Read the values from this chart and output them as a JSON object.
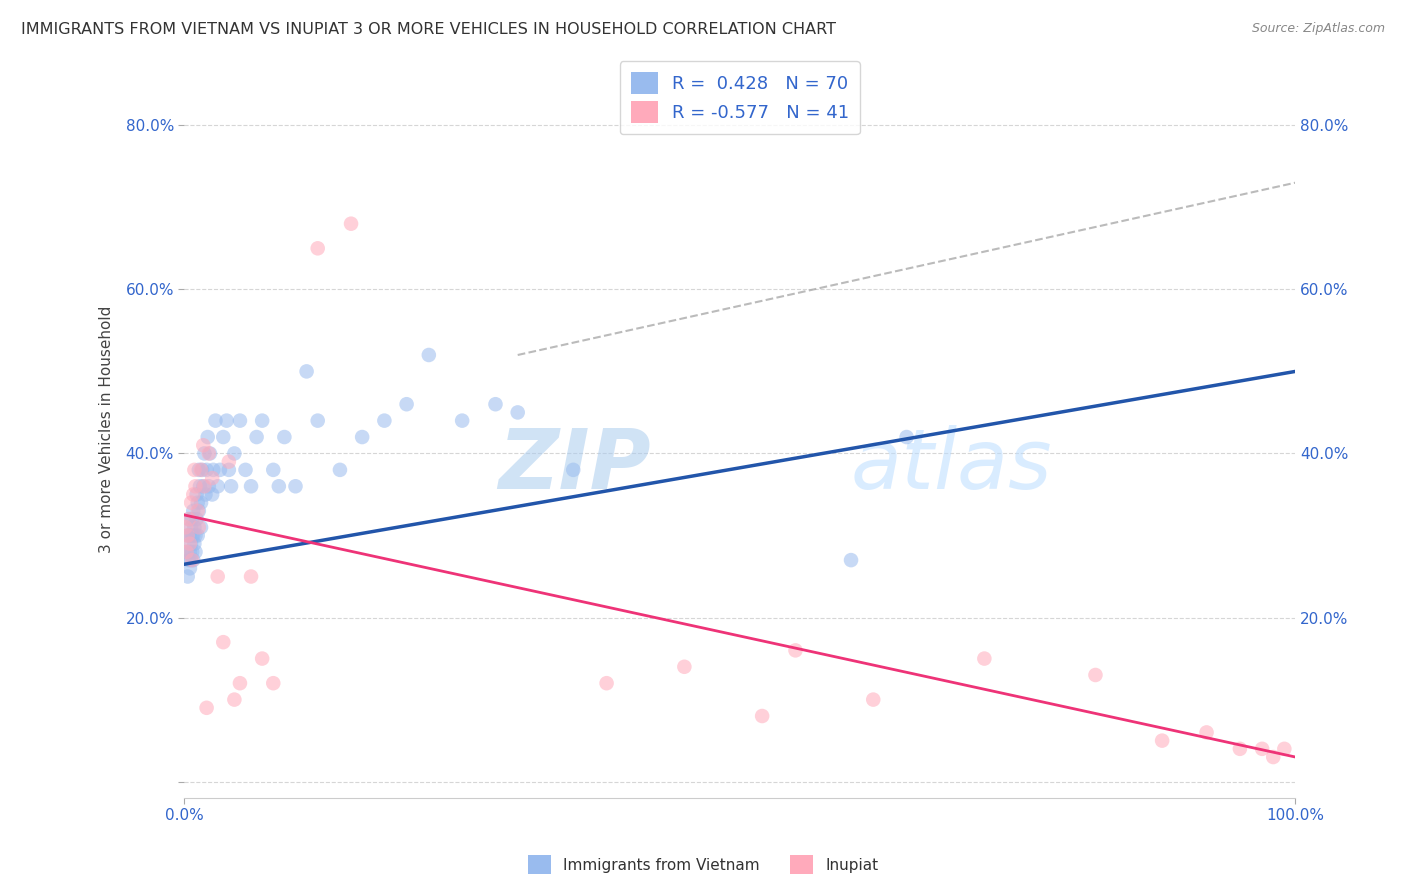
{
  "title": "IMMIGRANTS FROM VIETNAM VS INUPIAT 3 OR MORE VEHICLES IN HOUSEHOLD CORRELATION CHART",
  "source": "Source: ZipAtlas.com",
  "ylabel": "3 or more Vehicles in Household",
  "xlim": [
    0.0,
    1.0
  ],
  "ylim": [
    -0.02,
    0.88
  ],
  "x_ticks": [
    0.0,
    1.0
  ],
  "x_tick_labels": [
    "0.0%",
    "100.0%"
  ],
  "y_ticks": [
    0.0,
    0.2,
    0.4,
    0.6,
    0.8
  ],
  "y_tick_labels": [
    "",
    "20.0%",
    "40.0%",
    "60.0%",
    "80.0%"
  ],
  "right_y_ticks": [
    0.2,
    0.4,
    0.6,
    0.8
  ],
  "right_y_tick_labels": [
    "20.0%",
    "40.0%",
    "60.0%",
    "80.0%"
  ],
  "color_blue": "#99BBEE",
  "color_pink": "#FFAABB",
  "color_blue_line": "#2255AA",
  "color_pink_line": "#EE3377",
  "background_color": "#FFFFFF",
  "grid_color": "#CCCCCC",
  "title_color": "#333333",
  "source_color": "#888888",
  "blue_R": 0.428,
  "blue_N": 70,
  "pink_R": -0.577,
  "pink_N": 41,
  "blue_line_x0": 0.0,
  "blue_line_y0": 0.265,
  "blue_line_x1": 1.0,
  "blue_line_y1": 0.5,
  "pink_line_x0": 0.0,
  "pink_line_y0": 0.325,
  "pink_line_x1": 1.0,
  "pink_line_y1": 0.03,
  "dash_line_x0": 0.3,
  "dash_line_y0": 0.52,
  "dash_line_x1": 1.0,
  "dash_line_y1": 0.73,
  "blue_scatter_x": [
    0.002,
    0.003,
    0.003,
    0.004,
    0.004,
    0.005,
    0.005,
    0.005,
    0.006,
    0.006,
    0.006,
    0.007,
    0.007,
    0.007,
    0.008,
    0.008,
    0.008,
    0.009,
    0.009,
    0.01,
    0.01,
    0.011,
    0.011,
    0.012,
    0.012,
    0.013,
    0.013,
    0.014,
    0.015,
    0.015,
    0.016,
    0.017,
    0.018,
    0.019,
    0.02,
    0.021,
    0.022,
    0.023,
    0.025,
    0.026,
    0.028,
    0.03,
    0.032,
    0.035,
    0.038,
    0.04,
    0.042,
    0.045,
    0.05,
    0.055,
    0.06,
    0.065,
    0.07,
    0.08,
    0.085,
    0.09,
    0.1,
    0.11,
    0.12,
    0.14,
    0.16,
    0.18,
    0.2,
    0.22,
    0.25,
    0.28,
    0.3,
    0.35,
    0.6,
    0.65
  ],
  "blue_scatter_y": [
    0.28,
    0.25,
    0.3,
    0.27,
    0.32,
    0.28,
    0.3,
    0.26,
    0.31,
    0.29,
    0.27,
    0.3,
    0.28,
    0.32,
    0.27,
    0.3,
    0.33,
    0.29,
    0.31,
    0.28,
    0.3,
    0.32,
    0.35,
    0.3,
    0.34,
    0.38,
    0.33,
    0.36,
    0.31,
    0.34,
    0.38,
    0.36,
    0.4,
    0.35,
    0.38,
    0.42,
    0.36,
    0.4,
    0.35,
    0.38,
    0.44,
    0.36,
    0.38,
    0.42,
    0.44,
    0.38,
    0.36,
    0.4,
    0.44,
    0.38,
    0.36,
    0.42,
    0.44,
    0.38,
    0.36,
    0.42,
    0.36,
    0.5,
    0.44,
    0.38,
    0.42,
    0.44,
    0.46,
    0.52,
    0.44,
    0.46,
    0.45,
    0.38,
    0.27,
    0.42
  ],
  "pink_scatter_x": [
    0.001,
    0.002,
    0.003,
    0.004,
    0.005,
    0.006,
    0.007,
    0.008,
    0.009,
    0.01,
    0.012,
    0.013,
    0.015,
    0.017,
    0.018,
    0.02,
    0.022,
    0.025,
    0.03,
    0.035,
    0.04,
    0.045,
    0.05,
    0.06,
    0.07,
    0.08,
    0.12,
    0.15,
    0.38,
    0.45,
    0.52,
    0.55,
    0.62,
    0.72,
    0.82,
    0.88,
    0.92,
    0.95,
    0.97,
    0.98,
    0.99
  ],
  "pink_scatter_y": [
    0.31,
    0.28,
    0.3,
    0.32,
    0.29,
    0.34,
    0.27,
    0.35,
    0.38,
    0.36,
    0.33,
    0.31,
    0.38,
    0.41,
    0.36,
    0.09,
    0.4,
    0.37,
    0.25,
    0.17,
    0.39,
    0.1,
    0.12,
    0.25,
    0.15,
    0.12,
    0.65,
    0.68,
    0.12,
    0.14,
    0.08,
    0.16,
    0.1,
    0.15,
    0.13,
    0.05,
    0.06,
    0.04,
    0.04,
    0.03,
    0.04
  ]
}
